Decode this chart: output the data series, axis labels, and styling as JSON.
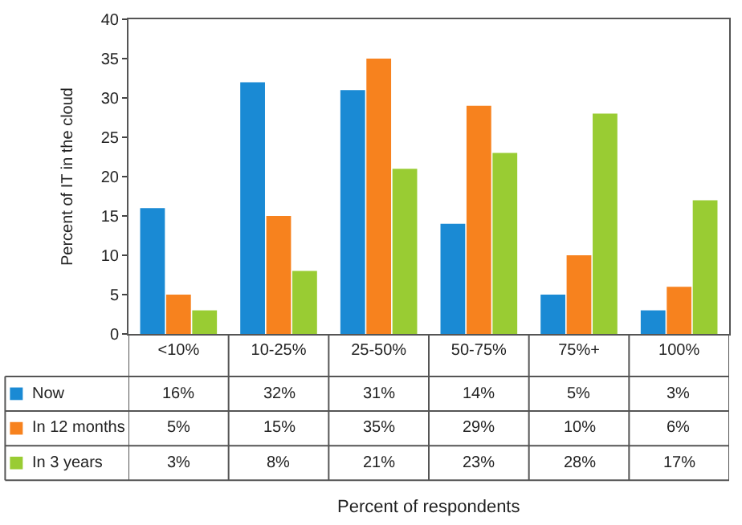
{
  "chart_data": {
    "type": "bar",
    "ylabel": "Percent of IT in the cloud",
    "annotations": [
      "Percent of respondents"
    ],
    "categories": [
      "<10%",
      "10-25%",
      "25-50%",
      "50-75%",
      "75%+",
      "100%"
    ],
    "series": [
      {
        "name": "Now",
        "color": "#1a8ad4",
        "values": [
          16,
          32,
          31,
          14,
          5,
          3
        ],
        "value_labels": [
          "16%",
          "32%",
          "31%",
          "14%",
          "5%",
          "3%"
        ]
      },
      {
        "name": "In 12 months",
        "color": "#f7821e",
        "values": [
          5,
          15,
          35,
          29,
          10,
          6
        ],
        "value_labels": [
          "5%",
          "15%",
          "35%",
          "29%",
          "10%",
          "6%"
        ]
      },
      {
        "name": "In 3 years",
        "color": "#99cc33",
        "values": [
          3,
          8,
          21,
          23,
          28,
          17
        ],
        "value_labels": [
          "3%",
          "8%",
          "21%",
          "23%",
          "28%",
          "17%"
        ]
      }
    ],
    "ylim": [
      0,
      40
    ],
    "yticks": [
      0,
      5,
      10,
      15,
      20,
      25,
      30,
      35,
      40
    ],
    "legend": "bottom left"
  }
}
